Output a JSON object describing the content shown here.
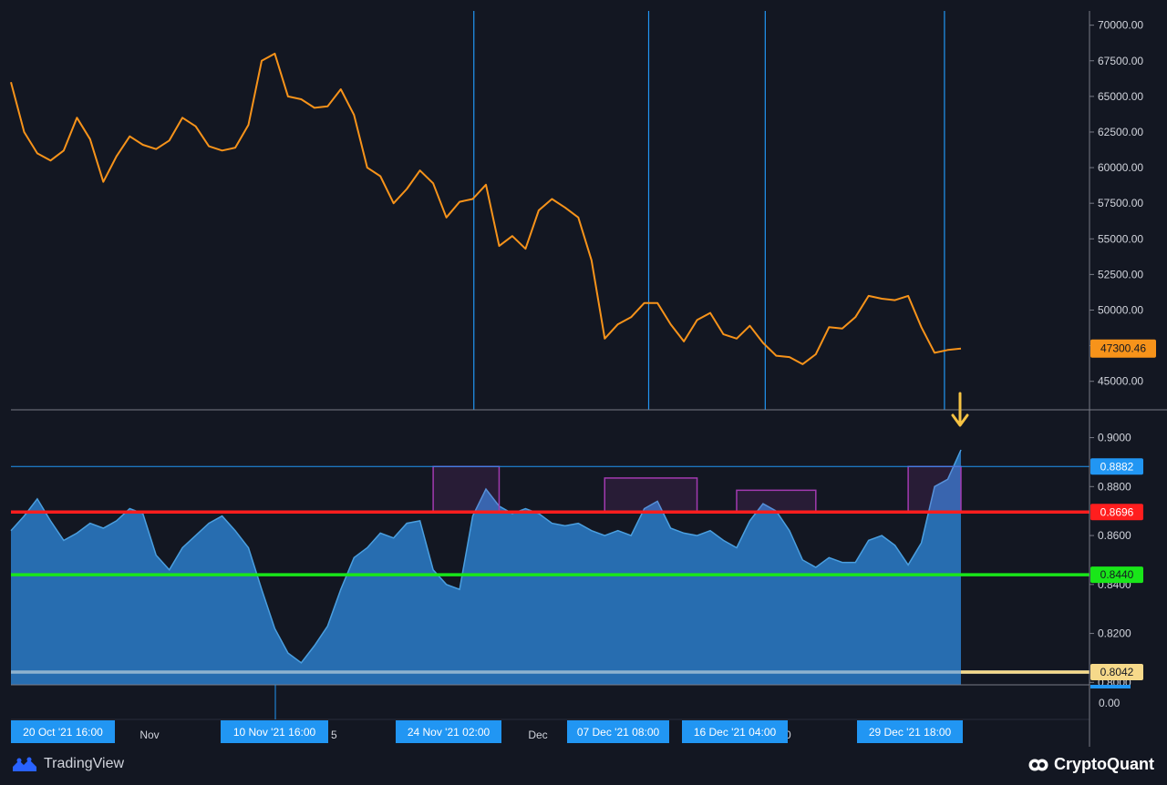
{
  "colors": {
    "background": "#131722",
    "price_line": "#f7931a",
    "ratio_fill": "#2a77c0",
    "ratio_line": "#4a9fe0",
    "vertical_markers": "#2196f3",
    "red_level": "#ff1e1e",
    "green_level": "#19e619",
    "white_level": "#8fb3cf",
    "top_level": "#2196f3",
    "highlight_box": "#a23ab0",
    "arrow": "#f6c343",
    "date_tag": "#2196f3"
  },
  "chart_data": [
    {
      "type": "line",
      "series": [
        {
          "x": [
            "2021-10-20",
            "2021-10-21",
            "2021-10-22",
            "2021-10-23",
            "2021-10-24",
            "2021-10-25",
            "2021-10-26",
            "2021-10-27",
            "2021-10-28",
            "2021-10-29",
            "2021-10-30",
            "2021-10-31",
            "2021-11-01",
            "2021-11-02",
            "2021-11-03",
            "2021-11-04",
            "2021-11-05",
            "2021-11-06",
            "2021-11-07",
            "2021-11-08",
            "2021-11-09",
            "2021-11-10",
            "2021-11-11",
            "2021-11-12",
            "2021-11-13",
            "2021-11-14",
            "2021-11-15",
            "2021-11-16",
            "2021-11-17",
            "2021-11-18",
            "2021-11-19",
            "2021-11-20",
            "2021-11-21",
            "2021-11-22",
            "2021-11-23",
            "2021-11-24",
            "2021-11-25",
            "2021-11-26",
            "2021-11-27",
            "2021-11-28",
            "2021-11-29",
            "2021-11-30",
            "2021-12-01",
            "2021-12-02",
            "2021-12-03",
            "2021-12-04",
            "2021-12-05",
            "2021-12-06",
            "2021-12-07",
            "2021-12-08",
            "2021-12-09",
            "2021-12-10",
            "2021-12-11",
            "2021-12-12",
            "2021-12-13",
            "2021-12-14",
            "2021-12-15",
            "2021-12-16",
            "2021-12-17",
            "2021-12-18",
            "2021-12-19",
            "2021-12-20",
            "2021-12-21",
            "2021-12-22",
            "2021-12-23",
            "2021-12-24",
            "2021-12-25",
            "2021-12-26",
            "2021-12-27",
            "2021-12-28",
            "2021-12-29",
            "2021-12-30",
            "2021-12-31"
          ],
          "values": [
            66000,
            62500,
            61000,
            60500,
            61200,
            63500,
            62000,
            59000,
            60800,
            62200,
            61600,
            61300,
            61900,
            63500,
            62900,
            61500,
            61200,
            61400,
            63000,
            67500,
            68000,
            65000,
            64800,
            64200,
            64300,
            65500,
            63700,
            60000,
            59400,
            57500,
            58500,
            59800,
            58900,
            56500,
            57600,
            57800,
            58800,
            54500,
            55200,
            54300,
            57000,
            57800,
            57200,
            56500,
            53500,
            48000,
            49000,
            49500,
            50500,
            50500,
            49000,
            47800,
            49300,
            49800,
            48300,
            48000,
            48900,
            47700,
            46800,
            46700,
            46200,
            46900,
            48800,
            48700,
            49500,
            51000,
            50800,
            50700,
            51000,
            48800,
            47000,
            47200,
            47300
          ]
        }
      ],
      "ylim": [
        43000,
        71000
      ],
      "yticks": [
        "45000.00",
        "47500.00",
        "50000.00",
        "52500.00",
        "55000.00",
        "57500.00",
        "60000.00",
        "62500.00",
        "65000.00",
        "67500.00",
        "70000.00"
      ],
      "last_value_label": "47300.46",
      "vertical_markers": [
        "2021-11-24T02:00",
        "2021-12-07T08:00",
        "2021-12-16T04:00",
        "2021-12-29T18:00"
      ]
    },
    {
      "type": "area",
      "series": [
        {
          "x": [
            "2021-10-20",
            "2021-10-21",
            "2021-10-22",
            "2021-10-23",
            "2021-10-24",
            "2021-10-25",
            "2021-10-26",
            "2021-10-27",
            "2021-10-28",
            "2021-10-29",
            "2021-10-30",
            "2021-10-31",
            "2021-11-01",
            "2021-11-02",
            "2021-11-03",
            "2021-11-04",
            "2021-11-05",
            "2021-11-06",
            "2021-11-07",
            "2021-11-08",
            "2021-11-09",
            "2021-11-10",
            "2021-11-11",
            "2021-11-12",
            "2021-11-13",
            "2021-11-14",
            "2021-11-15",
            "2021-11-16",
            "2021-11-17",
            "2021-11-18",
            "2021-11-19",
            "2021-11-20",
            "2021-11-21",
            "2021-11-22",
            "2021-11-23",
            "2021-11-24",
            "2021-11-25",
            "2021-11-26",
            "2021-11-27",
            "2021-11-28",
            "2021-11-29",
            "2021-11-30",
            "2021-12-01",
            "2021-12-02",
            "2021-12-03",
            "2021-12-04",
            "2021-12-05",
            "2021-12-06",
            "2021-12-07",
            "2021-12-08",
            "2021-12-09",
            "2021-12-10",
            "2021-12-11",
            "2021-12-12",
            "2021-12-13",
            "2021-12-14",
            "2021-12-15",
            "2021-12-16",
            "2021-12-17",
            "2021-12-18",
            "2021-12-19",
            "2021-12-20",
            "2021-12-21",
            "2021-12-22",
            "2021-12-23",
            "2021-12-24",
            "2021-12-25",
            "2021-12-26",
            "2021-12-27",
            "2021-12-28",
            "2021-12-29",
            "2021-12-30",
            "2021-12-31"
          ],
          "values": [
            0.862,
            0.868,
            0.875,
            0.866,
            0.858,
            0.861,
            0.865,
            0.863,
            0.866,
            0.871,
            0.869,
            0.852,
            0.846,
            0.855,
            0.86,
            0.865,
            0.868,
            0.862,
            0.855,
            0.838,
            0.822,
            0.812,
            0.808,
            0.815,
            0.823,
            0.838,
            0.851,
            0.855,
            0.861,
            0.859,
            0.865,
            0.866,
            0.846,
            0.84,
            0.838,
            0.868,
            0.879,
            0.872,
            0.869,
            0.871,
            0.869,
            0.865,
            0.864,
            0.865,
            0.862,
            0.86,
            0.862,
            0.86,
            0.871,
            0.874,
            0.863,
            0.861,
            0.86,
            0.862,
            0.858,
            0.855,
            0.866,
            0.873,
            0.87,
            0.862,
            0.85,
            0.847,
            0.851,
            0.849,
            0.849,
            0.858,
            0.86,
            0.856,
            0.848,
            0.857,
            0.88,
            0.883,
            0.895
          ]
        }
      ],
      "ylim": [
        0.799,
        0.911
      ],
      "yticks": [
        "0.8000",
        "0.8200",
        "0.8400",
        "0.8600",
        "0.8800",
        "0.9000"
      ],
      "zero_label": "0.00",
      "levels": [
        {
          "value": 0.8882,
          "label": "0.8882",
          "color_key": "top_level"
        },
        {
          "value": 0.8696,
          "label": "0.8696",
          "color_key": "red_level"
        },
        {
          "value": 0.844,
          "label": "0.8440",
          "color_key": "green_level"
        },
        {
          "value": 0.8042,
          "label": "0.8042",
          "color_key": "white_level"
        }
      ],
      "highlight_ranges": [
        {
          "start": "2021-11-21",
          "end": "2021-11-26",
          "low": 0.8696,
          "high": 0.8882
        },
        {
          "start": "2021-12-04",
          "end": "2021-12-11",
          "low": 0.8696,
          "high": 0.8835
        },
        {
          "start": "2021-12-14",
          "end": "2021-12-20",
          "low": 0.8696,
          "high": 0.8785
        },
        {
          "start": "2021-12-27",
          "end": "2021-12-31",
          "low": 0.8696,
          "high": 0.8882
        }
      ]
    }
  ],
  "x_axis": {
    "month_labels": [
      "Nov",
      "Dec"
    ],
    "partial_labels": [
      "5",
      "0"
    ],
    "date_tags": [
      "20 Oct '21   16:00",
      "10 Nov '21   16:00",
      "24 Nov '21   02:00",
      "07 Dec '21   08:00",
      "16 Dec '21   04:00",
      "29 Dec '21   18:00"
    ]
  },
  "footer": {
    "left_brand": "TradingView",
    "right_brand": "CryptoQuant"
  }
}
